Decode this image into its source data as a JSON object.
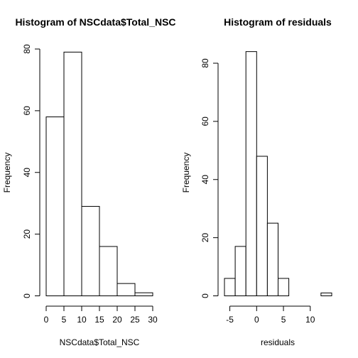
{
  "chart_data": [
    {
      "type": "bar",
      "title": "Histogram of NSCdata$Total_NSC",
      "xlabel": "NSCdata$Total_NSC",
      "ylabel": "Frequency",
      "bins": [
        {
          "from": 0,
          "to": 5,
          "count": 58
        },
        {
          "from": 5,
          "to": 10,
          "count": 79
        },
        {
          "from": 10,
          "to": 15,
          "count": 29
        },
        {
          "from": 15,
          "to": 20,
          "count": 16
        },
        {
          "from": 20,
          "to": 25,
          "count": 4
        },
        {
          "from": 25,
          "to": 30,
          "count": 1
        }
      ],
      "xlim": [
        0,
        30
      ],
      "ylim": [
        0,
        80
      ],
      "xticks": [
        0,
        5,
        10,
        15,
        20,
        25,
        30
      ],
      "yticks": [
        0,
        20,
        40,
        60,
        80
      ],
      "grid": false,
      "legend": "none"
    },
    {
      "type": "bar",
      "title": "Histogram of residuals",
      "xlabel": "residuals",
      "ylabel": "Frequency",
      "bins": [
        {
          "from": -6,
          "to": -4,
          "count": 6
        },
        {
          "from": -4,
          "to": -2,
          "count": 17
        },
        {
          "from": -2,
          "to": 0,
          "count": 84
        },
        {
          "from": 0,
          "to": 2,
          "count": 48
        },
        {
          "from": 2,
          "to": 4,
          "count": 25
        },
        {
          "from": 4,
          "to": 6,
          "count": 6
        },
        {
          "from": 6,
          "to": 8,
          "count": 0
        },
        {
          "from": 8,
          "to": 10,
          "count": 0
        },
        {
          "from": 10,
          "to": 12,
          "count": 0
        },
        {
          "from": 12,
          "to": 14,
          "count": 1
        }
      ],
      "xlim": [
        -6,
        14
      ],
      "ylim": [
        0,
        80
      ],
      "xticks": [
        -5,
        0,
        5,
        10
      ],
      "yticks": [
        0,
        20,
        40,
        60,
        80
      ],
      "grid": false,
      "legend": "none"
    }
  ]
}
